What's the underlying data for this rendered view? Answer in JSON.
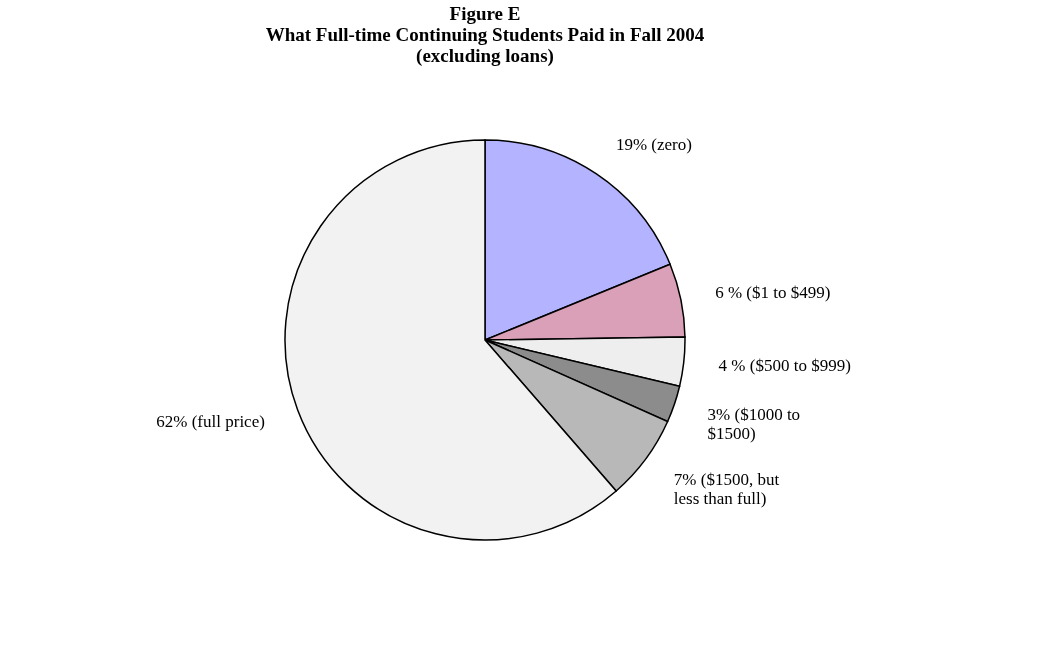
{
  "chart_data": {
    "type": "pie",
    "title": [
      "Figure E",
      "What Full-time Continuing Students Paid in Fall 2004",
      "(excluding loans)"
    ],
    "categories": [
      "19% (zero)",
      "6 % ($1 to $499)",
      "4 % ($500 to $999)",
      "3% ($1000 to\n$1500)",
      "7% ($1500, but\nless than full)",
      "62% (full price)"
    ],
    "values": [
      19,
      6,
      4,
      3,
      7,
      62
    ],
    "colors": [
      "#b3b3ff",
      "#d9a0b8",
      "#eeeeee",
      "#8c8c8c",
      "#b8b8b8",
      "#f2f2f2"
    ],
    "legend": false
  }
}
